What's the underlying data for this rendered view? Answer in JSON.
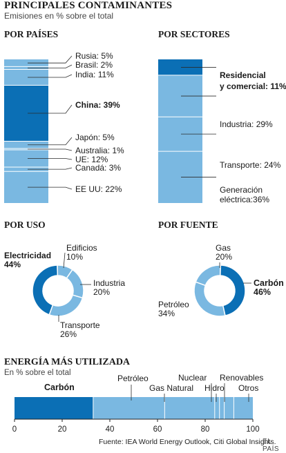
{
  "title": "PRINCIPALES CONTAMINANTES",
  "subtitle": "Emisiones en % sobre el total",
  "colors": {
    "dark": "#0b6fb5",
    "light": "#7ab8e1",
    "line": "#2b2b2b",
    "divider": "#ffffff"
  },
  "chart_data": [
    {
      "type": "bar",
      "title": "POR PAÍSES",
      "stacked": true,
      "categories": [
        "Rusia",
        "Brasil",
        "India",
        "China",
        "Japón",
        "Australia",
        "UE",
        "Canadá",
        "EE UU"
      ],
      "values": [
        5,
        2,
        11,
        39,
        5,
        1,
        12,
        3,
        22
      ],
      "labels": [
        "Rusia: 5%",
        "Brasil: 2%",
        "India: 11%",
        "China: 39%",
        "Japón: 5%",
        "Australia: 1%",
        "UE: 12%",
        "Canadá: 3%",
        "EE UU: 22%"
      ],
      "highlight": "China"
    },
    {
      "type": "bar",
      "title": "POR SECTORES",
      "stacked": true,
      "categories": [
        "Residencial y comercial",
        "Industria",
        "Transporte",
        "Generación eléctrica"
      ],
      "values": [
        11,
        29,
        24,
        36
      ],
      "labels": [
        [
          "Residencial",
          "y comercial: 11%"
        ],
        [
          "Industria: 29%"
        ],
        [
          "Transporte: 24%"
        ],
        [
          "Generación",
          "eléctrica:36%"
        ]
      ],
      "highlight": "Residencial y comercial"
    },
    {
      "type": "pie",
      "title": "POR USO",
      "categories": [
        "Electricidad",
        "Edificios",
        "Industria",
        "Transporte"
      ],
      "values": [
        44,
        10,
        20,
        26
      ],
      "labels": [
        [
          "Electricidad",
          "44%"
        ],
        [
          "Edificios",
          "10%"
        ],
        [
          "Industria",
          "20%"
        ],
        [
          "Transporte",
          "26%"
        ]
      ],
      "highlight": "Electricidad"
    },
    {
      "type": "pie",
      "title": "POR FUENTE",
      "categories": [
        "Gas",
        "Carbón",
        "Petróleo"
      ],
      "values": [
        20,
        46,
        34
      ],
      "labels": [
        [
          "Gas",
          "20%"
        ],
        [
          "Carbón",
          "46%"
        ],
        [
          "Petróleo",
          "34%"
        ]
      ],
      "highlight": "Carbón"
    },
    {
      "type": "bar",
      "title": "ENERGÍA MÁS UTILIZADA",
      "subtitle": "En % sobre el total",
      "stacked": true,
      "orientation": "horizontal",
      "categories": [
        "Carbón",
        "Petróleo",
        "Gas Natural",
        "Nuclear",
        "Hidro",
        "Renovables",
        "Otros"
      ],
      "values": [
        33,
        30,
        21,
        2,
        2,
        4,
        8
      ],
      "xlim": [
        0,
        100
      ],
      "xticks": [
        "0",
        "20",
        "40",
        "60",
        "80",
        "100"
      ],
      "highlight": "Carbón"
    }
  ],
  "footer": "Fuente: IEA World Energy Outlook, Citi Global Insights.",
  "brand": "EL PAÍS"
}
